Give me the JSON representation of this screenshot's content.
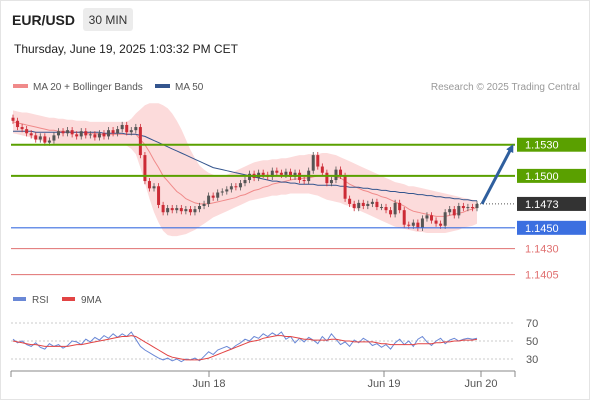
{
  "header": {
    "symbol": "EUR/USD",
    "timeframe": "30 MIN",
    "datetime": "Thursday, June 19, 2025 1:03:32 PM CET"
  },
  "colors": {
    "ma20": "#f08a8a",
    "bollinger_fill": "#fbd5d5",
    "ma50": "#34558e",
    "resistance": "#5aa000",
    "support": "#3b6fe0",
    "secondary_support": "#e07070",
    "up_candle": "#555555",
    "down_candle": "#cc2b36",
    "current_price": "#333333",
    "rsi": "#6a88d6",
    "rsi_ma": "#e24444",
    "forecast_arrow": "#2f5f9e"
  },
  "chart_data": [
    {
      "type": "candlestick",
      "legend": [
        {
          "label": "MA 20 + Bollinger Bands",
          "color": "#f08a8a"
        },
        {
          "label": "MA 50",
          "color": "#34558e"
        }
      ],
      "legend_position": "top-left",
      "credit": "Research © 2025 Trading Central",
      "ylim": [
        1.1394,
        1.1574
      ],
      "x_ticks": [
        "Jun 18",
        "Jun 19",
        "Jun 20"
      ],
      "closes": [
        1.1553,
        1.1547,
        1.1545,
        1.1541,
        1.1539,
        1.1535,
        1.1538,
        1.1532,
        1.1534,
        1.1539,
        1.1543,
        1.1541,
        1.1544,
        1.154,
        1.1538,
        1.1543,
        1.1539,
        1.154,
        1.1537,
        1.1541,
        1.1538,
        1.1544,
        1.1541,
        1.1545,
        1.1549,
        1.1542,
        1.1544,
        1.1547,
        1.152,
        1.1495,
        1.1488,
        1.149,
        1.1472,
        1.1465,
        1.1469,
        1.1467,
        1.1469,
        1.1466,
        1.1468,
        1.1465,
        1.1468,
        1.1471,
        1.1473,
        1.1481,
        1.1479,
        1.1484,
        1.1485,
        1.1487,
        1.149,
        1.1489,
        1.1493,
        1.1496,
        1.1502,
        1.1498,
        1.1503,
        1.1501,
        1.1499,
        1.1505,
        1.1503,
        1.1501,
        1.1504,
        1.1499,
        1.1503,
        1.1496,
        1.1495,
        1.1505,
        1.152,
        1.1509,
        1.1503,
        1.1493,
        1.1496,
        1.1506,
        1.15,
        1.1478,
        1.1473,
        1.1469,
        1.1474,
        1.1471,
        1.1473,
        1.1475,
        1.147,
        1.147,
        1.1467,
        1.1463,
        1.1474,
        1.1467,
        1.1453,
        1.1452,
        1.1455,
        1.145,
        1.1459,
        1.1462,
        1.1457,
        1.1454,
        1.1452,
        1.1465,
        1.1468,
        1.1462,
        1.1471,
        1.1469,
        1.147,
        1.1469,
        1.1473
      ],
      "ma20": [
        1.1552,
        1.1551,
        1.155,
        1.1549,
        1.1548,
        1.1547,
        1.1546,
        1.1545,
        1.1544,
        1.1544,
        1.1543,
        1.1543,
        1.1543,
        1.1542,
        1.1542,
        1.1542,
        1.1541,
        1.1541,
        1.1541,
        1.154,
        1.154,
        1.154,
        1.154,
        1.154,
        1.154,
        1.154,
        1.154,
        1.154,
        1.1535,
        1.153,
        1.1523,
        1.1515,
        1.1508,
        1.15,
        1.1495,
        1.149,
        1.1485,
        1.1482,
        1.1478,
        1.1476,
        1.1474,
        1.1473,
        1.1473,
        1.1473,
        1.1474,
        1.1475,
        1.1476,
        1.1477,
        1.1478,
        1.1479,
        1.1481,
        1.1482,
        1.1484,
        1.1486,
        1.1487,
        1.1489,
        1.149,
        1.1492,
        1.1493,
        1.1494,
        1.1495,
        1.1496,
        1.1497,
        1.1497,
        1.1498,
        1.1498,
        1.1499,
        1.15,
        1.15,
        1.15,
        1.15,
        1.1499,
        1.1498,
        1.1495,
        1.1492,
        1.149,
        1.1488,
        1.1486,
        1.1485,
        1.1483,
        1.1482,
        1.148,
        1.1479,
        1.1477,
        1.1475,
        1.1473,
        1.1471,
        1.1468,
        1.1466,
        1.1465,
        1.1464,
        1.1463,
        1.1462,
        1.1461,
        1.1461,
        1.1461,
        1.1462,
        1.1463,
        1.1464,
        1.1465,
        1.1467,
        1.1468,
        1.147
      ],
      "bb_upper": [
        1.1563,
        1.1562,
        1.1561,
        1.1561,
        1.156,
        1.1559,
        1.1558,
        1.1557,
        1.1556,
        1.1556,
        1.1555,
        1.1555,
        1.1554,
        1.1554,
        1.1553,
        1.1553,
        1.1553,
        1.1552,
        1.1552,
        1.1552,
        1.1552,
        1.1552,
        1.1552,
        1.1552,
        1.1552,
        1.1552,
        1.1555,
        1.156,
        1.1564,
        1.1568,
        1.157,
        1.157,
        1.157,
        1.1568,
        1.1565,
        1.156,
        1.1553,
        1.1545,
        1.1535,
        1.1525,
        1.1517,
        1.151,
        1.1506,
        1.1503,
        1.1501,
        1.15,
        1.15,
        1.1501,
        1.1503,
        1.1505,
        1.1507,
        1.1509,
        1.1511,
        1.1513,
        1.1514,
        1.1515,
        1.1515,
        1.1516,
        1.1516,
        1.1517,
        1.1517,
        1.1518,
        1.1519,
        1.152,
        1.152,
        1.1521,
        1.1521,
        1.1521,
        1.1522,
        1.1522,
        1.1521,
        1.152,
        1.1518,
        1.1516,
        1.1514,
        1.1512,
        1.151,
        1.1508,
        1.1506,
        1.1504,
        1.1502,
        1.15,
        1.1498,
        1.1496,
        1.1494,
        1.1493,
        1.1492,
        1.149,
        1.149,
        1.1489,
        1.1488,
        1.1487,
        1.1486,
        1.1485,
        1.1484,
        1.1483,
        1.1482,
        1.1481,
        1.148,
        1.1479,
        1.1478,
        1.1477,
        1.1476
      ],
      "bb_lower": [
        1.1541,
        1.154,
        1.1539,
        1.1538,
        1.1537,
        1.1535,
        1.1534,
        1.1533,
        1.1532,
        1.1531,
        1.153,
        1.153,
        1.153,
        1.153,
        1.153,
        1.153,
        1.153,
        1.153,
        1.153,
        1.153,
        1.153,
        1.153,
        1.153,
        1.153,
        1.153,
        1.1529,
        1.1526,
        1.1521,
        1.1508,
        1.1493,
        1.1478,
        1.1465,
        1.1455,
        1.1447,
        1.1443,
        1.1442,
        1.1442,
        1.1443,
        1.1444,
        1.1446,
        1.1448,
        1.1451,
        1.1454,
        1.1457,
        1.146,
        1.1462,
        1.1464,
        1.1466,
        1.1468,
        1.147,
        1.1472,
        1.1474,
        1.1476,
        1.1477,
        1.1478,
        1.1479,
        1.148,
        1.1481,
        1.1481,
        1.1482,
        1.1482,
        1.1483,
        1.1483,
        1.1483,
        1.1483,
        1.1483,
        1.1482,
        1.1481,
        1.1479,
        1.1477,
        1.1476,
        1.1475,
        1.1474,
        1.1472,
        1.1471,
        1.1469,
        1.1467,
        1.1465,
        1.1463,
        1.1461,
        1.1459,
        1.1457,
        1.1455,
        1.1453,
        1.1451,
        1.145,
        1.1449,
        1.1448,
        1.1447,
        1.1446,
        1.1446,
        1.1445,
        1.1445,
        1.1445,
        1.1445,
        1.1445,
        1.1446,
        1.1447,
        1.1448,
        1.145,
        1.1451,
        1.1452,
        1.1454
      ],
      "ma50": [
        1.1543,
        1.1543,
        1.1543,
        1.1543,
        1.1543,
        1.1542,
        1.1542,
        1.1542,
        1.1542,
        1.1542,
        1.1542,
        1.1542,
        1.1542,
        1.1542,
        1.1542,
        1.1542,
        1.1542,
        1.1542,
        1.1542,
        1.1542,
        1.1541,
        1.1541,
        1.1541,
        1.1541,
        1.1541,
        1.154,
        1.154,
        1.154,
        1.1539,
        1.1538,
        1.1536,
        1.1534,
        1.1532,
        1.153,
        1.1528,
        1.1526,
        1.1524,
        1.1522,
        1.152,
        1.1518,
        1.1516,
        1.1514,
        1.1512,
        1.151,
        1.1508,
        1.1507,
        1.1506,
        1.1505,
        1.1504,
        1.1503,
        1.1502,
        1.1501,
        1.15,
        1.1499,
        1.1498,
        1.1497,
        1.1496,
        1.1495,
        1.1495,
        1.1494,
        1.1494,
        1.1493,
        1.1493,
        1.1492,
        1.1492,
        1.1492,
        1.1492,
        1.1491,
        1.1491,
        1.1491,
        1.1491,
        1.1491,
        1.149,
        1.149,
        1.1489,
        1.1489,
        1.1489,
        1.1488,
        1.1488,
        1.1487,
        1.1487,
        1.1486,
        1.1486,
        1.1485,
        1.1485,
        1.1484,
        1.1484,
        1.1483,
        1.1483,
        1.1482,
        1.1482,
        1.1481,
        1.1481,
        1.148,
        1.148,
        1.1479,
        1.1479,
        1.1478,
        1.1478,
        1.1477,
        1.1477,
        1.1476,
        1.1476
      ],
      "levels": [
        {
          "value": 1.153,
          "label": "1.1530",
          "kind": "resistance"
        },
        {
          "value": 1.15,
          "label": "1.1500",
          "kind": "resistance"
        },
        {
          "value": 1.1473,
          "label": "1.1473",
          "kind": "current"
        },
        {
          "value": 1.145,
          "label": "1.1450",
          "kind": "support"
        },
        {
          "value": 1.143,
          "label": "1.1430",
          "kind": "secondary"
        },
        {
          "value": 1.1405,
          "label": "1.1405",
          "kind": "secondary"
        }
      ],
      "forecast_arrow": {
        "from": 1.1473,
        "to": 1.1528,
        "direction": "up"
      }
    },
    {
      "type": "line",
      "legend": [
        {
          "label": "RSI",
          "color": "#6a88d6"
        },
        {
          "label": "9MA",
          "color": "#e24444"
        }
      ],
      "ylim": [
        20,
        80
      ],
      "y_ticks": [
        70,
        50,
        30
      ],
      "rsi": [
        52,
        48,
        50,
        46,
        44,
        48,
        43,
        41,
        47,
        44,
        46,
        42,
        45,
        50,
        49,
        46,
        52,
        49,
        54,
        51,
        56,
        53,
        58,
        54,
        58,
        55,
        60,
        52,
        44,
        40,
        37,
        34,
        31,
        29,
        31,
        28,
        30,
        27,
        30,
        29,
        31,
        28,
        33,
        38,
        35,
        40,
        42,
        44,
        41,
        45,
        48,
        52,
        50,
        55,
        53,
        58,
        55,
        59,
        56,
        60,
        52,
        55,
        48,
        53,
        49,
        54,
        51,
        47,
        55,
        50,
        58,
        52,
        46,
        49,
        44,
        51,
        48,
        53,
        50,
        45,
        47,
        43,
        46,
        41,
        48,
        52,
        46,
        50,
        44,
        52,
        55,
        49,
        45,
        50,
        53,
        47,
        51,
        53,
        50,
        52,
        53,
        52,
        53
      ],
      "rsi_ma": [
        50,
        49,
        48,
        47,
        46,
        46,
        45,
        44,
        44,
        44,
        44,
        44,
        44,
        45,
        46,
        46,
        47,
        48,
        49,
        50,
        51,
        52,
        53,
        54,
        55,
        55,
        56,
        55,
        52,
        49,
        46,
        43,
        40,
        37,
        34,
        32,
        31,
        30,
        29,
        29,
        29,
        29,
        30,
        31,
        33,
        35,
        37,
        39,
        41,
        43,
        45,
        47,
        49,
        50,
        51,
        53,
        54,
        55,
        56,
        56,
        55,
        55,
        54,
        53,
        52,
        52,
        51,
        51,
        51,
        51,
        52,
        52,
        51,
        50,
        50,
        49,
        49,
        49,
        49,
        49,
        48,
        47,
        47,
        46,
        46,
        46,
        46,
        46,
        46,
        47,
        47,
        47,
        47,
        48,
        48,
        49,
        49,
        50,
        50,
        51,
        51,
        51,
        52
      ]
    }
  ]
}
